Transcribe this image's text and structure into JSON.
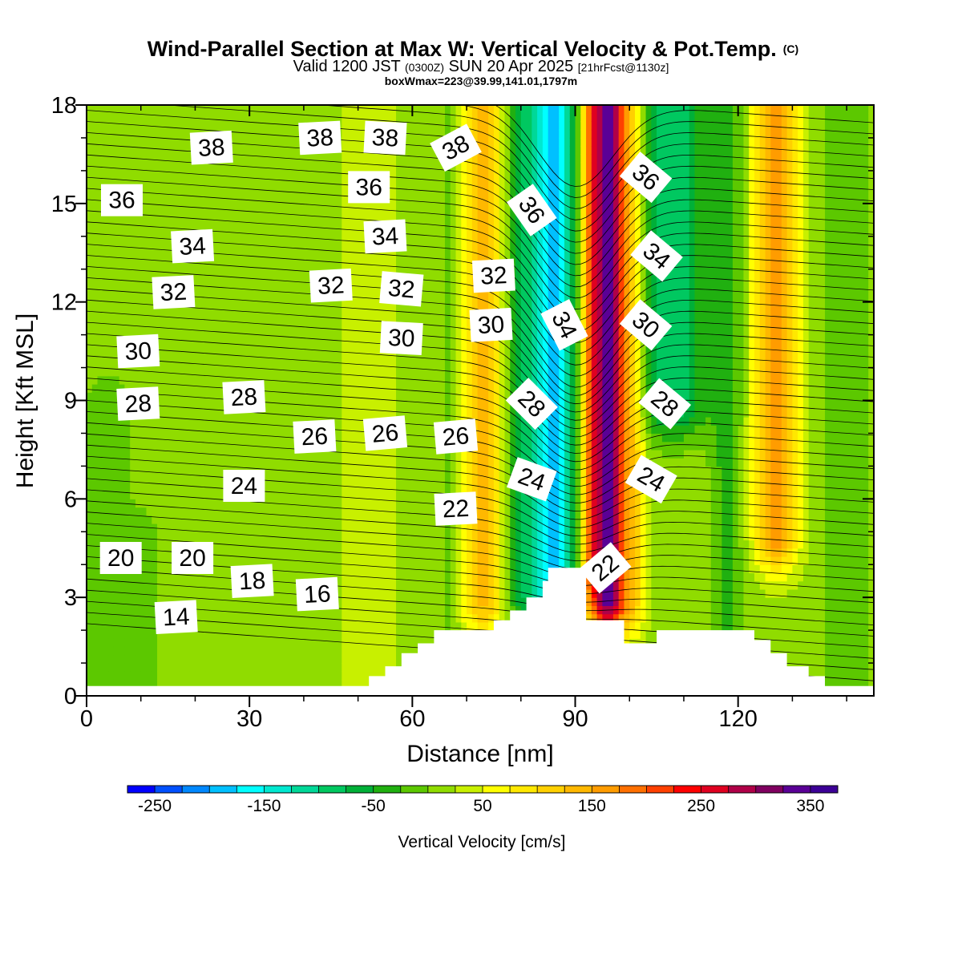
{
  "chart_data": {
    "type": "heatmap",
    "title": "Wind-Parallel Section at Max W: Vertical Velocity & Pot.Temp.",
    "title_mark": "(C)",
    "subtitle_main": "Valid 1200 JST ",
    "subtitle_utc": "(0300Z)",
    "subtitle_date": " SUN 20 Apr 2025 ",
    "subtitle_fcst": "[21hrFcst@1130z]",
    "subtitle2": "boxWmax=223@39.99,141.01,1797m",
    "xlabel": "Distance [nm]",
    "ylabel": "Height [Kft MSL]",
    "xlim": [
      0,
      145
    ],
    "ylim": [
      0,
      18
    ],
    "x_ticks": [
      "0",
      "30",
      "60",
      "90",
      "120"
    ],
    "x_tick_values": [
      0,
      30,
      60,
      90,
      120
    ],
    "y_ticks": [
      "0",
      "3",
      "6",
      "9",
      "12",
      "15",
      "18"
    ],
    "y_tick_values": [
      0,
      3,
      6,
      9,
      12,
      15,
      18
    ],
    "colorbar": {
      "label": "Vertical Velocity [cm/s]",
      "ticks": [
        "-250",
        "-150",
        "-50",
        "50",
        "150",
        "250",
        "350"
      ],
      "tick_values": [
        -250,
        -150,
        -50,
        50,
        150,
        250,
        350
      ],
      "min": -275,
      "max": 375,
      "step": 25,
      "colors": [
        "#0000ff",
        "#0050ff",
        "#0088ff",
        "#00c0ff",
        "#00ffff",
        "#00e8d0",
        "#00d898",
        "#00c860",
        "#00b038",
        "#20b010",
        "#5cc800",
        "#90dc00",
        "#c8f000",
        "#ffff00",
        "#ffe800",
        "#ffd000",
        "#ffb800",
        "#ff9c00",
        "#ff7000",
        "#ff4000",
        "#ff0000",
        "#e00020",
        "#b00048",
        "#800060",
        "#5a0096",
        "#3c0096"
      ]
    },
    "w_features": [
      {
        "x_center": 4,
        "x_halfwidth": 5,
        "z_bottom": 0,
        "z_top": 9,
        "w": -25
      },
      {
        "x_center": 12,
        "x_halfwidth": 5,
        "z_bottom": 0,
        "z_top": 5,
        "w": -15
      },
      {
        "x_center": 52,
        "x_halfwidth": 5,
        "z_bottom": 0,
        "z_top": 18,
        "w": 30
      },
      {
        "x_center": 67,
        "x_halfwidth": 2,
        "z_bottom": 1,
        "z_top": 18,
        "w": -25
      },
      {
        "x_center": 73,
        "x_halfwidth": 4,
        "z_bottom": 3,
        "z_top": 18,
        "w": 115
      },
      {
        "x_center": 80,
        "x_halfwidth": 3,
        "z_bottom": 3,
        "z_top": 18,
        "w": -70
      },
      {
        "x_center": 86,
        "x_halfwidth": 4,
        "z_bottom": 3.5,
        "z_top": 18,
        "w": -200
      },
      {
        "x_center": 92.5,
        "x_halfwidth": 1.5,
        "z_bottom": 4,
        "z_top": 18,
        "w": 80
      },
      {
        "x_center": 96,
        "x_halfwidth": 3.5,
        "z_bottom": 3,
        "z_top": 18,
        "w": 320
      },
      {
        "x_center": 101,
        "x_halfwidth": 2,
        "z_bottom": 3,
        "z_top": 18,
        "w": 70
      },
      {
        "x_center": 108,
        "x_halfwidth": 6,
        "z_bottom": 9,
        "z_top": 18,
        "w": -110
      },
      {
        "x_center": 118,
        "x_halfwidth": 3,
        "z_bottom": 1,
        "z_top": 18,
        "w": -50
      },
      {
        "x_center": 127,
        "x_halfwidth": 4,
        "z_bottom": 5,
        "z_top": 18,
        "w": 155
      },
      {
        "x_center": 140,
        "x_halfwidth": 5,
        "z_bottom": 0,
        "z_top": 18,
        "w": -30
      }
    ],
    "terrain": [
      [
        0,
        0.3
      ],
      [
        51,
        0.3
      ],
      [
        52,
        0.6
      ],
      [
        55,
        0.9
      ],
      [
        58,
        1.3
      ],
      [
        61,
        1.6
      ],
      [
        64,
        2.0
      ],
      [
        74,
        2.0
      ],
      [
        75,
        2.3
      ],
      [
        78,
        2.6
      ],
      [
        81,
        3.0
      ],
      [
        84,
        3.5
      ],
      [
        85,
        3.9
      ],
      [
        91,
        3.9
      ],
      [
        92,
        2.3
      ],
      [
        97,
        2.3
      ],
      [
        99,
        1.6
      ],
      [
        104,
        1.6
      ],
      [
        105,
        2.0
      ],
      [
        117,
        2.0
      ],
      [
        122,
        2.0
      ],
      [
        123,
        1.7
      ],
      [
        126,
        1.3
      ],
      [
        129,
        0.9
      ],
      [
        133,
        0.6
      ],
      [
        136,
        0.3
      ],
      [
        145,
        0.3
      ]
    ],
    "theta_contours": {
      "min": 14,
      "max": 39,
      "step": 0.5,
      "mountain_x": 90,
      "mountain_halfwidth": 10
    },
    "contour_labels": [
      {
        "text": "38",
        "x": 23,
        "y": 16.7,
        "angle": -3
      },
      {
        "text": "38",
        "x": 43,
        "y": 17.0,
        "angle": -3
      },
      {
        "text": "38",
        "x": 55,
        "y": 17.0,
        "angle": 3
      },
      {
        "text": "38",
        "x": 68,
        "y": 16.7,
        "angle": -28
      },
      {
        "text": "36",
        "x": 6.5,
        "y": 15.1,
        "angle": 0
      },
      {
        "text": "36",
        "x": 52,
        "y": 15.5,
        "angle": 0
      },
      {
        "text": "36",
        "x": 82,
        "y": 14.8,
        "angle": 55
      },
      {
        "text": "36",
        "x": 103,
        "y": 15.8,
        "angle": 40
      },
      {
        "text": "34",
        "x": 19.5,
        "y": 13.7,
        "angle": -3
      },
      {
        "text": "34",
        "x": 55,
        "y": 14.0,
        "angle": -3
      },
      {
        "text": "34",
        "x": 105,
        "y": 13.4,
        "angle": 40
      },
      {
        "text": "34",
        "x": 88,
        "y": 11.3,
        "angle": 63
      },
      {
        "text": "32",
        "x": 16,
        "y": 12.3,
        "angle": -3
      },
      {
        "text": "32",
        "x": 45,
        "y": 12.5,
        "angle": -3
      },
      {
        "text": "32",
        "x": 58,
        "y": 12.4,
        "angle": 5
      },
      {
        "text": "32",
        "x": 75,
        "y": 12.8,
        "angle": -3
      },
      {
        "text": "30",
        "x": 9.5,
        "y": 10.5,
        "angle": -3
      },
      {
        "text": "30",
        "x": 58,
        "y": 10.9,
        "angle": 3
      },
      {
        "text": "30",
        "x": 74.5,
        "y": 11.3,
        "angle": -3
      },
      {
        "text": "30",
        "x": 103,
        "y": 11.3,
        "angle": 40
      },
      {
        "text": "28",
        "x": 9.5,
        "y": 8.9,
        "angle": -3
      },
      {
        "text": "28",
        "x": 29,
        "y": 9.1,
        "angle": -3
      },
      {
        "text": "28",
        "x": 82,
        "y": 8.9,
        "angle": 45
      },
      {
        "text": "28",
        "x": 106.5,
        "y": 8.9,
        "angle": 40
      },
      {
        "text": "26",
        "x": 42,
        "y": 7.9,
        "angle": -3
      },
      {
        "text": "26",
        "x": 55,
        "y": 8.0,
        "angle": -5
      },
      {
        "text": "26",
        "x": 68,
        "y": 7.9,
        "angle": -5
      },
      {
        "text": "24",
        "x": 29,
        "y": 6.4,
        "angle": 0
      },
      {
        "text": "24",
        "x": 82,
        "y": 6.6,
        "angle": 20
      },
      {
        "text": "24",
        "x": 104,
        "y": 6.6,
        "angle": 30
      },
      {
        "text": "22",
        "x": 68,
        "y": 5.7,
        "angle": -3
      },
      {
        "text": "22",
        "x": 95.5,
        "y": 3.9,
        "angle": -40
      },
      {
        "text": "20",
        "x": 6.3,
        "y": 4.2,
        "angle": 0
      },
      {
        "text": "20",
        "x": 19.5,
        "y": 4.2,
        "angle": 0
      },
      {
        "text": "18",
        "x": 30.5,
        "y": 3.5,
        "angle": -3
      },
      {
        "text": "16",
        "x": 42.5,
        "y": 3.1,
        "angle": -3
      },
      {
        "text": "14",
        "x": 16.5,
        "y": 2.4,
        "angle": -3
      }
    ]
  }
}
